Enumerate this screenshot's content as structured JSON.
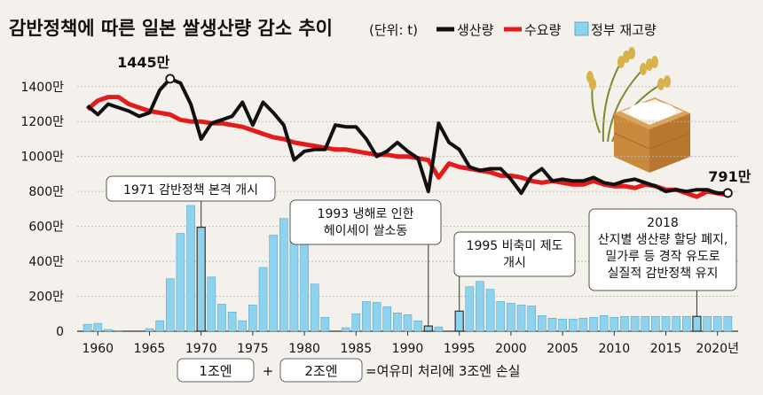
{
  "chart_data": {
    "type": "bar+line",
    "title": "감반정책에 따른 일본 쌀생산량 감소 추이",
    "unit": "(단위: t)",
    "legend": {
      "production": "생산량",
      "demand": "수요량",
      "stock": "정부 재고량"
    },
    "colors": {
      "production": "#111111",
      "demand": "#e31b1b",
      "stock": "#8ed3ee",
      "stock_border": "#4f9cc0",
      "background": "#f4f1ec"
    },
    "y_ticks": [
      {
        "value": 0,
        "label": "0"
      },
      {
        "value": 200,
        "label": "200만"
      },
      {
        "value": 400,
        "label": "400만"
      },
      {
        "value": 600,
        "label": "600만"
      },
      {
        "value": 800,
        "label": "800만"
      },
      {
        "value": 1000,
        "label": "1000만"
      },
      {
        "value": 1200,
        "label": "1200만"
      },
      {
        "value": 1400,
        "label": "1400만"
      }
    ],
    "y_unit_scale": "만 t",
    "ylim": [
      0,
      1480
    ],
    "x_range": [
      1958,
      2022
    ],
    "x_ticks": [
      {
        "value": 1960,
        "label": "1960"
      },
      {
        "value": 1965,
        "label": "1965"
      },
      {
        "value": 1970,
        "label": "1970"
      },
      {
        "value": 1975,
        "label": "1975"
      },
      {
        "value": 1980,
        "label": "1980"
      },
      {
        "value": 1985,
        "label": "1985"
      },
      {
        "value": 1990,
        "label": "1990"
      },
      {
        "value": 1995,
        "label": "1995"
      },
      {
        "value": 2000,
        "label": "2000"
      },
      {
        "value": 2005,
        "label": "2005"
      },
      {
        "value": 2010,
        "label": "2010"
      },
      {
        "value": 2015,
        "label": "2015"
      },
      {
        "value": 2020,
        "label": "2020년"
      }
    ],
    "stock_years": [
      1959,
      1960,
      1961,
      1962,
      1963,
      1964,
      1965,
      1966,
      1967,
      1968,
      1969,
      1970,
      1971,
      1972,
      1973,
      1974,
      1975,
      1976,
      1977,
      1978,
      1979,
      1980,
      1981,
      1982,
      1983,
      1984,
      1985,
      1986,
      1987,
      1988,
      1989,
      1990,
      1991,
      1992,
      1993,
      1994,
      1995,
      1996,
      1997,
      1998,
      1999,
      2000,
      2001,
      2002,
      2003,
      2004,
      2005,
      2006,
      2007,
      2008,
      2009,
      2010,
      2011,
      2012,
      2013,
      2014,
      2015,
      2016,
      2017,
      2018,
      2019,
      2020,
      2021
    ],
    "stock_values": [
      40,
      45,
      10,
      3,
      0,
      0,
      15,
      60,
      300,
      560,
      720,
      595,
      310,
      155,
      110,
      60,
      150,
      365,
      550,
      645,
      670,
      555,
      270,
      80,
      0,
      20,
      100,
      170,
      165,
      140,
      105,
      95,
      60,
      30,
      25,
      0,
      115,
      255,
      285,
      240,
      170,
      160,
      150,
      145,
      90,
      75,
      70,
      70,
      75,
      80,
      90,
      80,
      85,
      85,
      85,
      85,
      85,
      85,
      85,
      85,
      85,
      85,
      85
    ],
    "highlight_stock_years": [
      1970,
      1992,
      1995,
      2018
    ],
    "production": {
      "years": [
        1959,
        1960,
        1961,
        1962,
        1963,
        1964,
        1965,
        1966,
        1967,
        1968,
        1969,
        1970,
        1971,
        1972,
        1973,
        1974,
        1975,
        1976,
        1977,
        1978,
        1979,
        1980,
        1981,
        1982,
        1983,
        1984,
        1985,
        1986,
        1987,
        1988,
        1989,
        1990,
        1991,
        1992,
        1993,
        1994,
        1995,
        1996,
        1997,
        1998,
        1999,
        2000,
        2001,
        2002,
        2003,
        2004,
        2005,
        2006,
        2007,
        2008,
        2009,
        2010,
        2011,
        2012,
        2013,
        2014,
        2015,
        2016,
        2017,
        2018,
        2019,
        2020,
        2021
      ],
      "values": [
        1290,
        1240,
        1300,
        1280,
        1260,
        1230,
        1250,
        1380,
        1445,
        1420,
        1300,
        1100,
        1190,
        1210,
        1230,
        1310,
        1180,
        1310,
        1250,
        1180,
        980,
        1030,
        1040,
        1040,
        1180,
        1170,
        1170,
        1100,
        1000,
        1030,
        1080,
        1030,
        990,
        800,
        1190,
        1080,
        1040,
        940,
        920,
        930,
        930,
        870,
        790,
        890,
        930,
        860,
        870,
        860,
        860,
        880,
        850,
        840,
        860,
        870,
        850,
        830,
        800,
        810,
        800,
        810,
        810,
        790,
        791
      ]
    },
    "demand": {
      "years": [
        1959,
        1960,
        1961,
        1962,
        1963,
        1964,
        1965,
        1966,
        1967,
        1968,
        1969,
        1970,
        1971,
        1972,
        1973,
        1974,
        1975,
        1976,
        1977,
        1978,
        1979,
        1980,
        1981,
        1982,
        1983,
        1984,
        1985,
        1986,
        1987,
        1988,
        1989,
        1990,
        1991,
        1992,
        1993,
        1994,
        1995,
        1996,
        1997,
        1998,
        1999,
        2000,
        2001,
        2002,
        2003,
        2004,
        2005,
        2006,
        2007,
        2008,
        2009,
        2010,
        2011,
        2012,
        2013,
        2014,
        2015,
        2016,
        2017,
        2018,
        2019,
        2020,
        2021
      ],
      "values": [
        1270,
        1320,
        1340,
        1340,
        1300,
        1280,
        1260,
        1250,
        1240,
        1210,
        1200,
        1200,
        1190,
        1190,
        1180,
        1170,
        1150,
        1130,
        1110,
        1100,
        1080,
        1070,
        1060,
        1050,
        1040,
        1040,
        1030,
        1020,
        1010,
        1010,
        1000,
        1000,
        990,
        980,
        880,
        960,
        940,
        930,
        920,
        910,
        890,
        890,
        880,
        860,
        850,
        860,
        850,
        840,
        840,
        860,
        840,
        830,
        830,
        820,
        840,
        830,
        810,
        810,
        790,
        770,
        800,
        790,
        780
      ]
    },
    "point_labels": [
      {
        "text": "1445만",
        "year": 1967,
        "value": 1445
      },
      {
        "text": "791만",
        "year": 2021,
        "value": 791
      }
    ],
    "annotations": [
      {
        "lines": [
          "1971 감반정책 본격 개시"
        ],
        "year": 1970
      },
      {
        "lines": [
          "1993 냉해로 인한",
          "헤이세이 쌀소동"
        ],
        "year": 1992
      },
      {
        "lines": [
          "1995 비축미 제도",
          "개시"
        ],
        "year": 1995
      },
      {
        "lines": [
          "2018",
          "산지별 생산량 할당 폐지,",
          "밀가루 등 경작 유도로",
          "실질적 감반정책 유지"
        ],
        "year": 2018
      }
    ],
    "footnote": {
      "box1": "1조엔",
      "plus": "+",
      "box2": "2조엔",
      "text": "=여유미 처리에 3조엔 손실"
    }
  }
}
